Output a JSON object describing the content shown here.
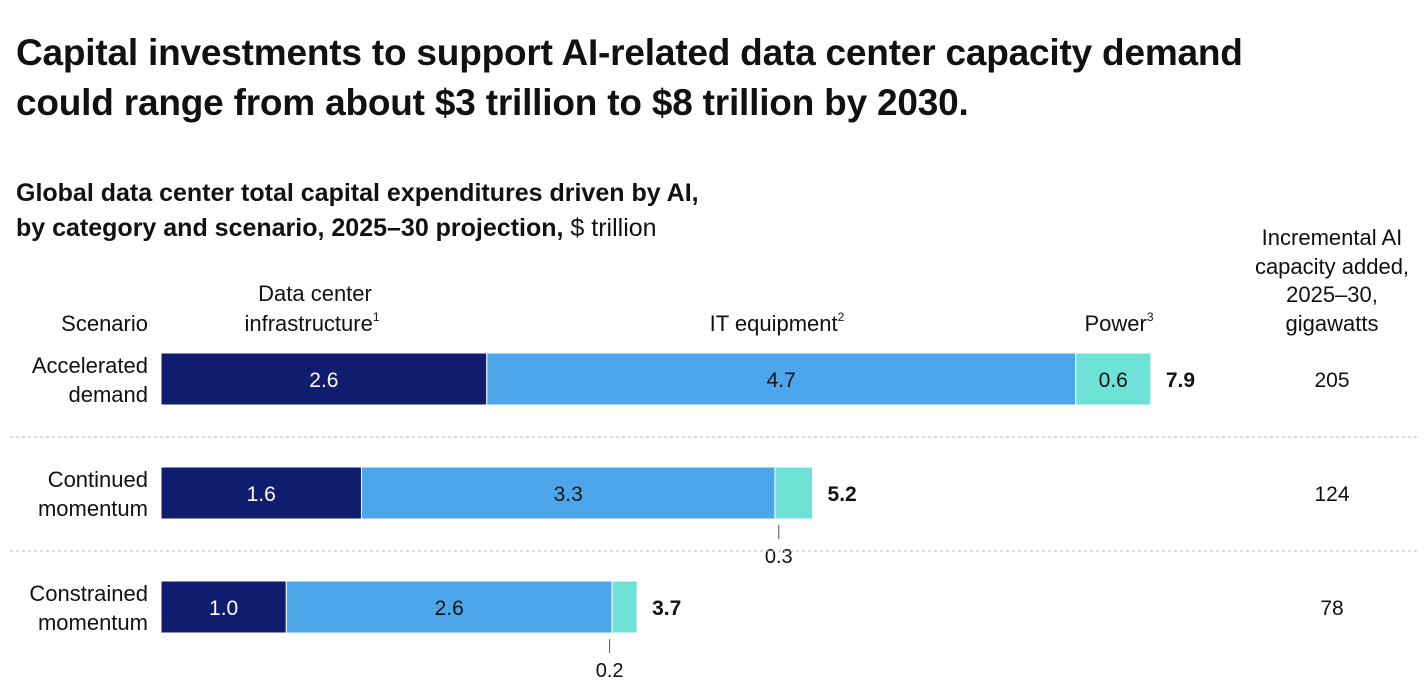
{
  "headline": {
    "line1": "Capital investments to support AI-related data center capacity demand",
    "line2": "could range from about $3 trillion to $8 trillion by 2030."
  },
  "subtitle": {
    "line1": "Global data center total capital expenditures driven by AI,",
    "line2_bold": "by category and scenario, 2025–30 projection,",
    "unit": "$ trillion"
  },
  "headers": {
    "scenario": "Scenario",
    "infra_line1": "Data center",
    "infra_line2": "infrastructure",
    "infra_sup": "1",
    "it": "IT equipment",
    "it_sup": "2",
    "power": "Power",
    "power_sup": "3",
    "capacity_lines": [
      "Incremental AI",
      "capacity added,",
      "2025–30,",
      "gigawatts"
    ]
  },
  "colors": {
    "infrastructure": "#101C6E",
    "it_equipment": "#4DA6EA",
    "power": "#6FE2D8",
    "divider": "#BBBBBB"
  },
  "chart_data": {
    "type": "bar",
    "orientation": "horizontal",
    "stacked": true,
    "title": "Global data center total capital expenditures driven by AI, by category and scenario, 2025–30 projection, $ trillion",
    "categories": [
      "Accelerated demand",
      "Continued momentum",
      "Constrained momentum"
    ],
    "category_lines": [
      [
        "Accelerated",
        "demand"
      ],
      [
        "Continued",
        "momentum"
      ],
      [
        "Constrained",
        "momentum"
      ]
    ],
    "series": [
      {
        "name": "Data center infrastructure",
        "values": [
          2.6,
          1.6,
          1.0
        ],
        "labels": [
          "2.6",
          "1.6",
          "1.0"
        ]
      },
      {
        "name": "IT equipment",
        "values": [
          4.7,
          3.3,
          2.6
        ],
        "labels": [
          "4.7",
          "3.3",
          "2.6"
        ]
      },
      {
        "name": "Power",
        "values": [
          0.6,
          0.3,
          0.2
        ],
        "labels": [
          "0.6",
          "0.3",
          "0.2"
        ]
      }
    ],
    "totals": [
      "7.9",
      "5.2",
      "3.7"
    ],
    "capacity_gw": [
      "205",
      "124",
      "78"
    ],
    "xlim": [
      0,
      7.9
    ]
  }
}
